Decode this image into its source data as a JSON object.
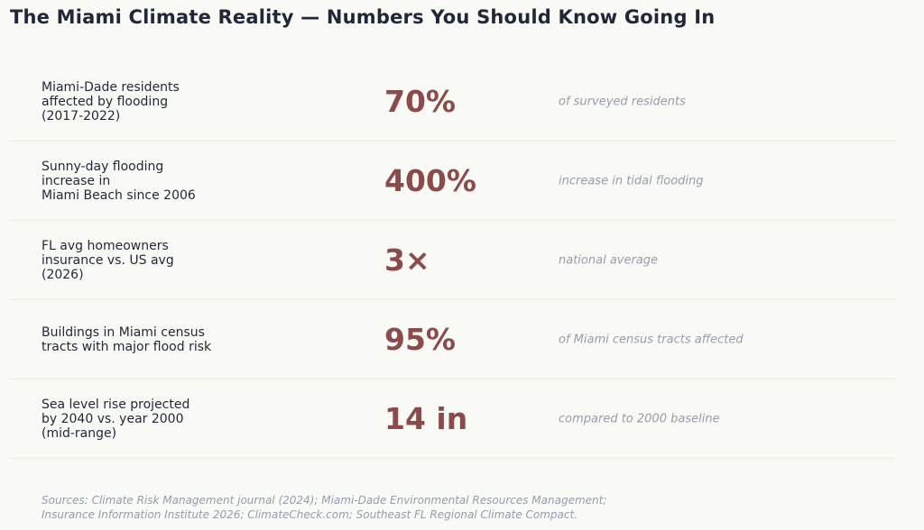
{
  "title": "The Miami Climate Reality — Numbers You Should Know Going In",
  "stats": [
    {
      "label": "Miami-Dade residents\naffected by flooding\n(2017-2022)",
      "value": "70%",
      "note": "of surveyed residents"
    },
    {
      "label": "Sunny-day flooding\nincrease in\nMiami Beach since 2006",
      "value": "400%",
      "note": "increase in tidal flooding"
    },
    {
      "label": "FL avg homeowners\ninsurance vs. US avg\n(2026)",
      "value": "3×",
      "note": "national average"
    },
    {
      "label": "Buildings in Miami census\ntracts with major flood risk",
      "value": "95%",
      "note": "of Miami census tracts affected"
    },
    {
      "label": "Sea level rise projected\nby 2040 vs. year 2000\n(mid-range)",
      "value": "14 in",
      "note": "compared to 2000 baseline"
    }
  ],
  "sources": "Sources: Climate Risk Management journal (2024); Miami-Dade Environmental Resources Management;\nInsurance Information Institute 2026; ClimateCheck.com; Southeast FL Regional Climate Compact.",
  "colors": {
    "background": "#f9f9f6",
    "title": "#1e2838",
    "value": "#8a4b4b",
    "note": "#949dae",
    "divider": "#e9e9e4"
  }
}
